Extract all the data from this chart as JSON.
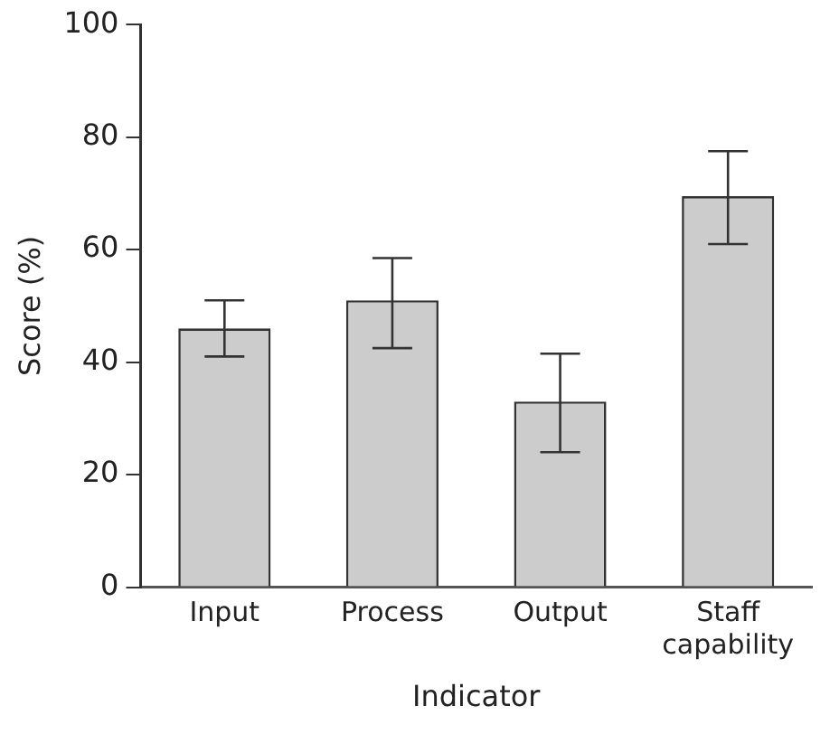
{
  "chart_data": {
    "type": "bar",
    "xlabel": "Indicator",
    "ylabel": "Score (%)",
    "categories": [
      "Input",
      "Process",
      "Output",
      "Staff capability"
    ],
    "values": [
      46,
      51,
      33,
      69.5
    ],
    "errors": [
      [
        41,
        51
      ],
      [
        42.5,
        58.5
      ],
      [
        24,
        41.5
      ],
      [
        61,
        77.5
      ]
    ],
    "color": "#cccccc",
    "ylim": [
      0,
      100
    ],
    "yticks": [
      0,
      20,
      40,
      60,
      80,
      100
    ],
    "grid": false,
    "legend": false
  }
}
